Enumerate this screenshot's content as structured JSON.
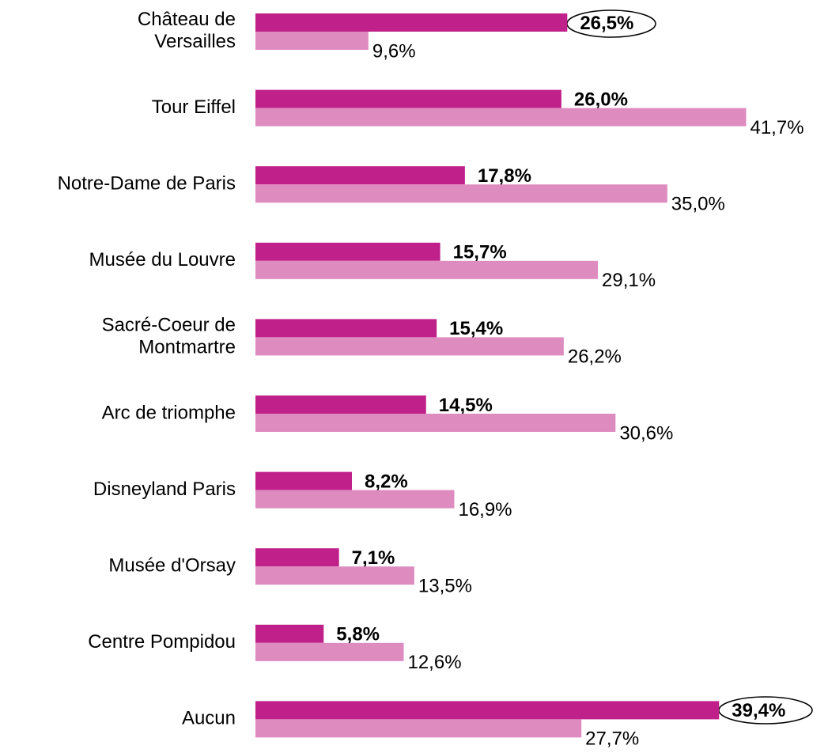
{
  "chart_data": {
    "type": "bar",
    "orientation": "horizontal",
    "categories": [
      "Château de Versailles",
      "Tour Eiffel",
      "Notre-Dame de Paris",
      "Musée du Louvre",
      "Sacré-Coeur de Montmartre",
      "Arc de triomphe",
      "Disneyland Paris",
      "Musée d'Orsay",
      "Centre Pompidou",
      "Aucun"
    ],
    "series": [
      {
        "color": "#c0208a",
        "values": [
          26.5,
          26.0,
          17.8,
          15.7,
          15.4,
          14.5,
          8.2,
          7.1,
          5.8,
          39.4
        ],
        "value_labels": [
          "26,5%",
          "26,0%",
          "17,8%",
          "15,7%",
          "15,4%",
          "14,5%",
          "8,2%",
          "7,1%",
          "5,8%",
          "39,4%"
        ]
      },
      {
        "color": "#de8cc0",
        "values": [
          9.6,
          41.7,
          35.0,
          29.1,
          26.2,
          30.6,
          16.9,
          13.5,
          12.6,
          27.7
        ],
        "value_labels": [
          "9,6%",
          "41,7%",
          "35,0%",
          "29,1%",
          "26,2%",
          "30,6%",
          "16,9%",
          "13,5%",
          "12,6%",
          "27,7%"
        ]
      }
    ]
  }
}
